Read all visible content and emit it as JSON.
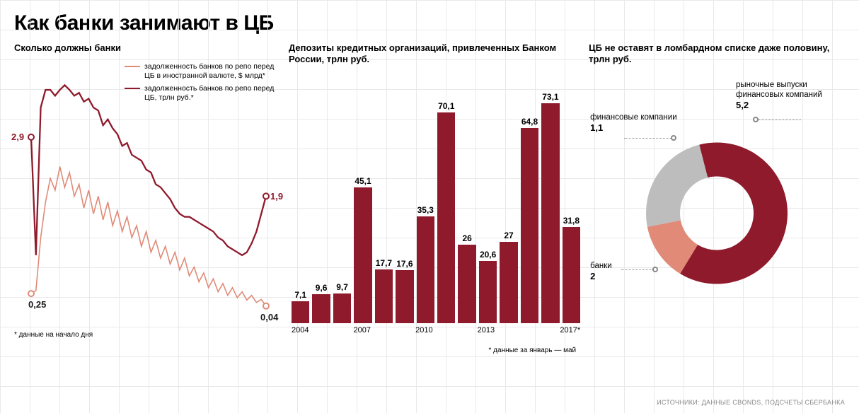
{
  "title": "Как банки занимают в ЦБ",
  "source_line": "ИСТОЧНИКИ: ДАННЫЕ CBONDS, ПОДСЧЕТЫ СБЕРБАНКА",
  "colors": {
    "dark_red": "#8f1a2c",
    "light_red": "#e08a77",
    "grey": "#bdbdbd",
    "grid": "#e9e9e9",
    "text": "#1a1a1a"
  },
  "line_panel": {
    "title": "Сколько должны банки",
    "footnote": "* данные на начало дня",
    "legend": [
      {
        "label": "задолженность банков по репо перед ЦБ в иностранной валюте, $ млрд*",
        "color": "#e08a77"
      },
      {
        "label": "задолженность банков по репо перед ЦБ, трлн руб.*",
        "color": "#8f1a2c"
      }
    ],
    "y_max": 4.0,
    "start_labels": {
      "series1": "0,25",
      "series2": "2,9"
    },
    "end_labels": {
      "series1": "0,04",
      "series2": "1,9"
    },
    "series1_color": "#e08a77",
    "series2_color": "#8f1a2c",
    "series2": [
      2.9,
      0.9,
      3.4,
      3.7,
      3.7,
      3.6,
      3.7,
      3.78,
      3.7,
      3.6,
      3.65,
      3.5,
      3.55,
      3.4,
      3.35,
      3.1,
      3.2,
      3.05,
      2.95,
      2.75,
      2.8,
      2.6,
      2.55,
      2.5,
      2.35,
      2.3,
      2.1,
      2.05,
      1.95,
      1.85,
      1.7,
      1.6,
      1.55,
      1.55,
      1.5,
      1.45,
      1.4,
      1.35,
      1.3,
      1.2,
      1.15,
      1.05,
      1.0,
      0.95,
      0.9,
      0.95,
      1.1,
      1.3,
      1.6,
      1.9
    ],
    "series1": [
      0.25,
      0.3,
      1.2,
      1.8,
      2.2,
      2.0,
      2.4,
      2.05,
      2.3,
      1.9,
      2.1,
      1.7,
      2.0,
      1.6,
      1.9,
      1.5,
      1.8,
      1.4,
      1.65,
      1.3,
      1.55,
      1.2,
      1.4,
      1.05,
      1.3,
      0.95,
      1.15,
      0.85,
      1.05,
      0.75,
      0.95,
      0.65,
      0.85,
      0.55,
      0.7,
      0.45,
      0.6,
      0.35,
      0.5,
      0.28,
      0.42,
      0.22,
      0.35,
      0.18,
      0.28,
      0.14,
      0.22,
      0.1,
      0.15,
      0.04
    ]
  },
  "bar_panel": {
    "title": "Депозиты кредитных организаций, привлеченных Банком России, трлн руб.",
    "footnote": "* данные за январь — май",
    "color": "#8f1a2c",
    "y_max": 80,
    "x_ticks": [
      "2004",
      "",
      "",
      "2007",
      "",
      "",
      "2010",
      "",
      "",
      "2013",
      "",
      "",
      "",
      "2017*"
    ],
    "values": [
      7.1,
      9.6,
      9.7,
      45.1,
      17.7,
      17.6,
      35.3,
      70.1,
      26,
      20.6,
      27,
      64.8,
      73.1,
      31.8
    ],
    "value_labels": [
      "7,1",
      "9,6",
      "9,7",
      "45,1",
      "17,7",
      "17,6",
      "35,3",
      "70,1",
      "26",
      "20,6",
      "27",
      "64,8",
      "73,1",
      "31,8"
    ]
  },
  "donut_panel": {
    "title": "ЦБ не оставят в ломбардном списке даже половину, трлн руб.",
    "inner_ratio": 0.52,
    "segments": [
      {
        "label": "рыночные выпуски финансовых компаний",
        "value": 5.2,
        "value_label": "5,2",
        "color": "#8f1a2c"
      },
      {
        "label": "финансовые компании",
        "value": 1.1,
        "value_label": "1,1",
        "color": "#e08a77"
      },
      {
        "label": "банки",
        "value": 2.0,
        "value_label": "2",
        "color": "#bdbdbd"
      }
    ]
  }
}
